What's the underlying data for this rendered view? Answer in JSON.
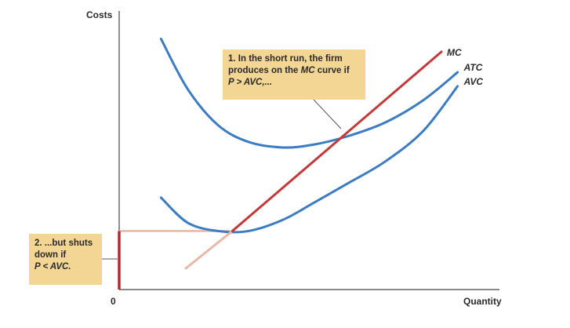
{
  "chart_data": {
    "type": "line",
    "title": "",
    "xlabel": "Quantity",
    "ylabel": "Costs",
    "origin_label": "0",
    "xlim": [
      0,
      100
    ],
    "ylim": [
      0,
      100
    ],
    "series": [
      {
        "name": "ATC",
        "color": "#3b7cc2",
        "x": [
          11,
          18,
          26,
          34,
          43,
          51,
          60,
          70,
          80,
          89
        ],
        "y": [
          90,
          72,
          59,
          53,
          51,
          52,
          55,
          60,
          68,
          78
        ]
      },
      {
        "name": "AVC",
        "color": "#3b7cc2",
        "x": [
          11,
          18,
          26,
          34,
          43,
          51,
          60,
          70,
          80,
          89
        ],
        "y": [
          33,
          24,
          21,
          21,
          25,
          31,
          38,
          46,
          57,
          73
        ]
      },
      {
        "name": "MC",
        "color": "#c33a3a",
        "x": [
          29,
          89
        ],
        "y": [
          20,
          100
        ]
      }
    ],
    "mc_below_shutdown_color": "#e8b8a8",
    "shutdown_price": 21,
    "shutdown_quantity": 29,
    "grid": false,
    "annotations": [
      {
        "id": "note1",
        "lines": [
          [
            {
              "t": "1. In the short run, the firm",
              "i": false
            }
          ],
          [
            {
              "t": "produces on the ",
              "i": false
            },
            {
              "t": "MC",
              "i": true
            },
            {
              "t": " curve if",
              "i": false
            }
          ],
          [
            {
              "t": "P > AVC,...",
              "i": true
            }
          ]
        ]
      },
      {
        "id": "note2",
        "lines": [
          [
            {
              "t": "2. ...but shuts",
              "i": false
            }
          ],
          [
            {
              "t": "down if",
              "i": false
            }
          ],
          [
            {
              "t": "P < AVC.",
              "i": true
            }
          ]
        ]
      }
    ]
  }
}
